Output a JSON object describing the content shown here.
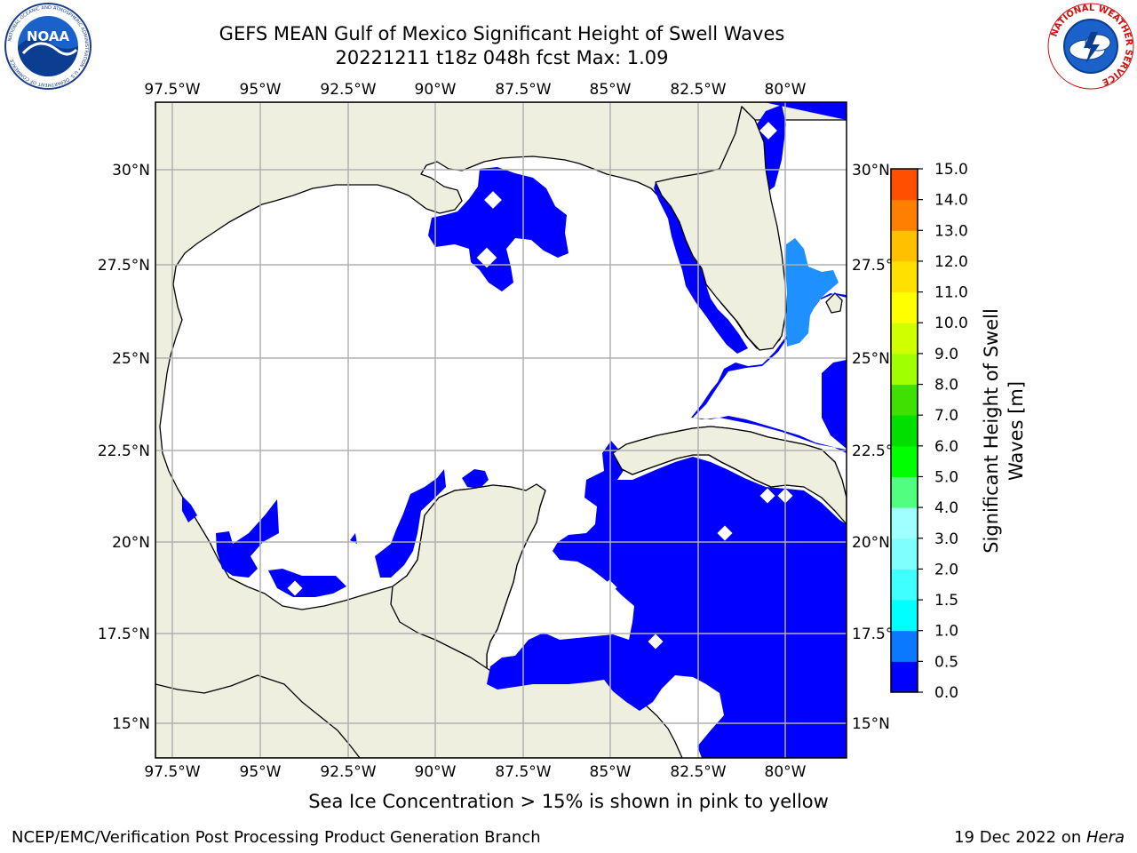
{
  "title": {
    "line1": "GEFS MEAN Gulf of Mexico Significant Height of Swell Waves",
    "line2": "20221211 t18z 048h fcst   Max: 1.09"
  },
  "logos": {
    "left": "NOAA",
    "left_ring_text": "NATIONAL OCEANIC AND ATMOSPHERIC ADMINISTRATION • U.S. DEPARTMENT OF COMMERCE",
    "right_ring_text": "NATIONAL WEATHER SERVICE"
  },
  "map": {
    "lon_ticks": [
      "97.5°W",
      "95°W",
      "92.5°W",
      "90°W",
      "87.5°W",
      "85°W",
      "82.5°W",
      "80°W"
    ],
    "lat_ticks": [
      "30°N",
      "27.5°N",
      "25°N",
      "22.5°N",
      "20°N",
      "17.5°N",
      "15°N"
    ],
    "colors": {
      "land": "#efefdf",
      "swell_low": "#0000ff",
      "swell_mid": "#1e90ff",
      "grid": "#b0b0b0"
    }
  },
  "colorbar": {
    "label": "Significant Height of Swell Waves [m]",
    "label_line1": "Significant Height of Swell",
    "label_line2": "Waves [m]",
    "ticks": [
      "0.0",
      "0.5",
      "1.0",
      "1.5",
      "2.0",
      "3.0",
      "4.0",
      "5.0",
      "6.0",
      "7.0",
      "8.0",
      "9.0",
      "10.0",
      "11.0",
      "12.0",
      "13.0",
      "14.0",
      "15.0"
    ],
    "colors": [
      "#0000ff",
      "#0a78ff",
      "#00ffff",
      "#40ffff",
      "#80ffff",
      "#a0ffff",
      "#50ff80",
      "#00ff00",
      "#00e000",
      "#40e000",
      "#a0ff00",
      "#d0ff00",
      "#ffff00",
      "#ffe000",
      "#ffc000",
      "#ff8000",
      "#ff5000",
      "#ff2000"
    ]
  },
  "footer": {
    "note": "Sea Ice Concentration > 15% is shown in pink to yellow",
    "credit": "NCEP/EMC/Verification Post Processing Product Generation Branch",
    "date": "19 Dec 2022 on ",
    "host": "Hera"
  }
}
